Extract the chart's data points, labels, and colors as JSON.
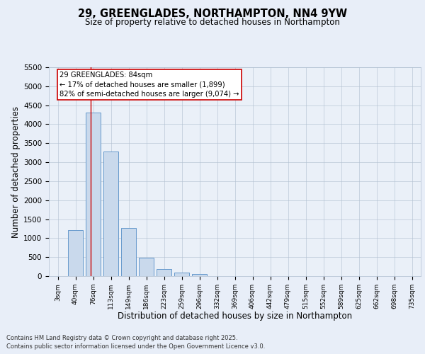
{
  "title_line1": "29, GREENGLADES, NORTHAMPTON, NN4 9YW",
  "title_line2": "Size of property relative to detached houses in Northampton",
  "xlabel": "Distribution of detached houses by size in Northampton",
  "ylabel": "Number of detached properties",
  "categories": [
    "3sqm",
    "40sqm",
    "76sqm",
    "113sqm",
    "149sqm",
    "186sqm",
    "223sqm",
    "259sqm",
    "296sqm",
    "332sqm",
    "369sqm",
    "406sqm",
    "442sqm",
    "479sqm",
    "515sqm",
    "552sqm",
    "589sqm",
    "625sqm",
    "662sqm",
    "698sqm",
    "735sqm"
  ],
  "bar_values": [
    0,
    1210,
    4310,
    3280,
    1260,
    490,
    180,
    100,
    60,
    0,
    0,
    0,
    0,
    0,
    0,
    0,
    0,
    0,
    0,
    0,
    0
  ],
  "bar_color": "#c9d9ec",
  "bar_edge_color": "#6699cc",
  "ylim": [
    0,
    5500
  ],
  "yticks": [
    0,
    500,
    1000,
    1500,
    2000,
    2500,
    3000,
    3500,
    4000,
    4500,
    5000,
    5500
  ],
  "vline_x": 1.85,
  "annotation_text": "29 GREENGLADES: 84sqm\n← 17% of detached houses are smaller (1,899)\n82% of semi-detached houses are larger (9,074) →",
  "annotation_box_color": "#ffffff",
  "annotation_edge_color": "#cc0000",
  "vline_color": "#cc0000",
  "footer_line1": "Contains HM Land Registry data © Crown copyright and database right 2025.",
  "footer_line2": "Contains public sector information licensed under the Open Government Licence v3.0.",
  "bg_color": "#e8eef8",
  "plot_bg_color": "#eaf0f8"
}
